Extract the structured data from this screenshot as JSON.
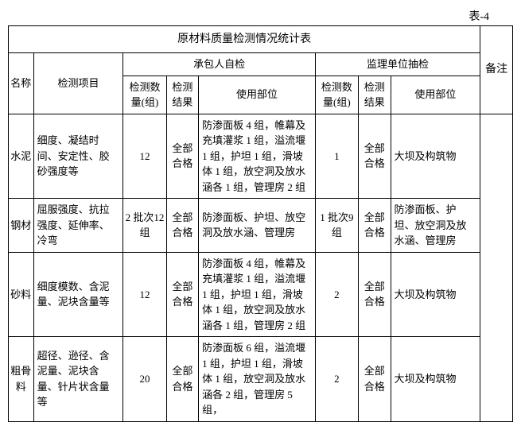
{
  "table_label": "表-4",
  "title": "原材料质量检测情况统计表",
  "headers": {
    "name": "名称",
    "item": "检测项目",
    "contractor_group": "承包人自检",
    "supervisor_group": "监理单位抽检",
    "remark": "备注",
    "qty": "检测数量(组)",
    "result": "检测结果",
    "usage": "使用部位"
  },
  "rows": [
    {
      "name": "水泥",
      "item": "细度、凝结时间、安定性、胶砂强度等",
      "c_qty": "12",
      "c_res": "全部合格",
      "c_use": "防渗面板 4 组，帷幕及充填灌浆 1 组，溢流堰 1 组，护坦 1 组，滑坡体 1 组，放空洞及放水涵各 1 组，管理房 2 组",
      "s_qty": "1",
      "s_res": "全部合格",
      "s_use": "大坝及构筑物"
    },
    {
      "name": "钢材",
      "item": "屈服强度、抗拉强度、延伸率、冷弯",
      "c_qty": "2 批次12 组",
      "c_res": "全部合格",
      "c_use": "防渗面板、护坦、放空洞及放水涵、管理房",
      "s_qty": "1 批次9 组",
      "s_res": "全部合格",
      "s_use": "防渗面板、护坦、放空洞及放水涵、管理房"
    },
    {
      "name": "砂料",
      "item": "细度模数、含泥量、泥块含量等",
      "c_qty": "12",
      "c_res": "全部合格",
      "c_use": "防渗面板 4 组，帷幕及充填灌浆 1 组，溢流堰 1 组，护坦 1 组，滑坡体 1 组，放空洞及放水涵各 1 组，管理房 2 组",
      "s_qty": "2",
      "s_res": "全部合格",
      "s_use": "大坝及构筑物"
    },
    {
      "name": "粗骨料",
      "item": "超径、逊径、含泥量、泥块含量、针片状含量等",
      "c_qty": "20",
      "c_res": "全部合格",
      "c_use": "防渗面板 6 组，溢流堰 1 组，护坦 1 组，滑坡体 1 组，放空洞及放水涵各 2 组，管理房 5 组，",
      "s_qty": "2",
      "s_res": "全部合格",
      "s_use": "大坝及构筑物"
    }
  ]
}
